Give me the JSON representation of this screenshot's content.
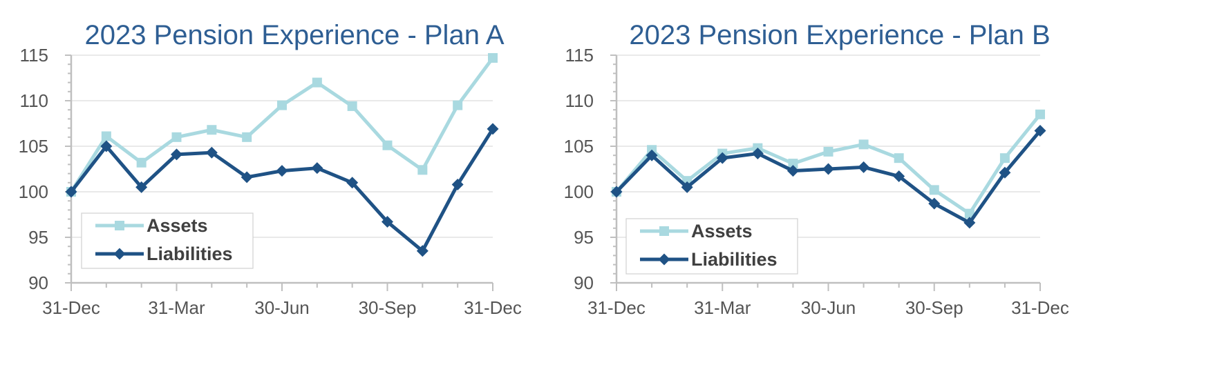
{
  "colors": {
    "title": "#2e5e93",
    "assets": "#a9d9e0",
    "liabilities": "#1f5285",
    "axis": "#bfbfbf",
    "grid": "#dcdcdc",
    "tick_text": "#555555",
    "legend_text": "#404040"
  },
  "chart_data": [
    {
      "type": "line",
      "title": "2023 Pension Experience - Plan A",
      "xlabel": "",
      "ylabel": "",
      "ylim": [
        90,
        115
      ],
      "yticks": [
        90,
        95,
        100,
        105,
        110,
        115
      ],
      "xtick_labels": [
        "31-Dec",
        "31-Mar",
        "30-Jun",
        "30-Sep",
        "31-Dec"
      ],
      "x": [
        "31-Dec",
        "",
        "",
        "31-Mar",
        "",
        "",
        "30-Jun",
        "",
        "",
        "30-Sep",
        "",
        "",
        "31-Dec"
      ],
      "grid": true,
      "legend": "bottom-left",
      "series": [
        {
          "name": "Assets",
          "marker": "square",
          "color": "#a9d9e0",
          "values": [
            100.0,
            106.1,
            103.2,
            106.0,
            106.8,
            106.0,
            109.5,
            112.0,
            109.4,
            105.1,
            102.4,
            109.5,
            114.7
          ]
        },
        {
          "name": "Liabilities",
          "marker": "diamond",
          "color": "#1f5285",
          "values": [
            100.0,
            105.0,
            100.5,
            104.1,
            104.3,
            101.6,
            102.3,
            102.6,
            101.0,
            96.7,
            93.5,
            100.8,
            106.9
          ]
        }
      ]
    },
    {
      "type": "line",
      "title": "2023 Pension Experience - Plan B",
      "xlabel": "",
      "ylabel": "",
      "ylim": [
        90,
        115
      ],
      "yticks": [
        90,
        95,
        100,
        105,
        110,
        115
      ],
      "xtick_labels": [
        "31-Dec",
        "31-Mar",
        "30-Jun",
        "30-Sep",
        "31-Dec"
      ],
      "x": [
        "31-Dec",
        "",
        "",
        "31-Mar",
        "",
        "",
        "30-Jun",
        "",
        "",
        "30-Sep",
        "",
        "",
        "31-Dec"
      ],
      "grid": true,
      "legend": "bottom-left",
      "series": [
        {
          "name": "Assets",
          "marker": "square",
          "color": "#a9d9e0",
          "values": [
            100.0,
            104.6,
            101.2,
            104.2,
            104.8,
            103.1,
            104.4,
            105.2,
            103.7,
            100.2,
            97.6,
            103.7,
            108.5
          ]
        },
        {
          "name": "Liabilities",
          "marker": "diamond",
          "color": "#1f5285",
          "values": [
            100.0,
            104.0,
            100.5,
            103.7,
            104.2,
            102.3,
            102.5,
            102.7,
            101.7,
            98.7,
            96.6,
            102.1,
            106.7
          ]
        }
      ]
    }
  ]
}
